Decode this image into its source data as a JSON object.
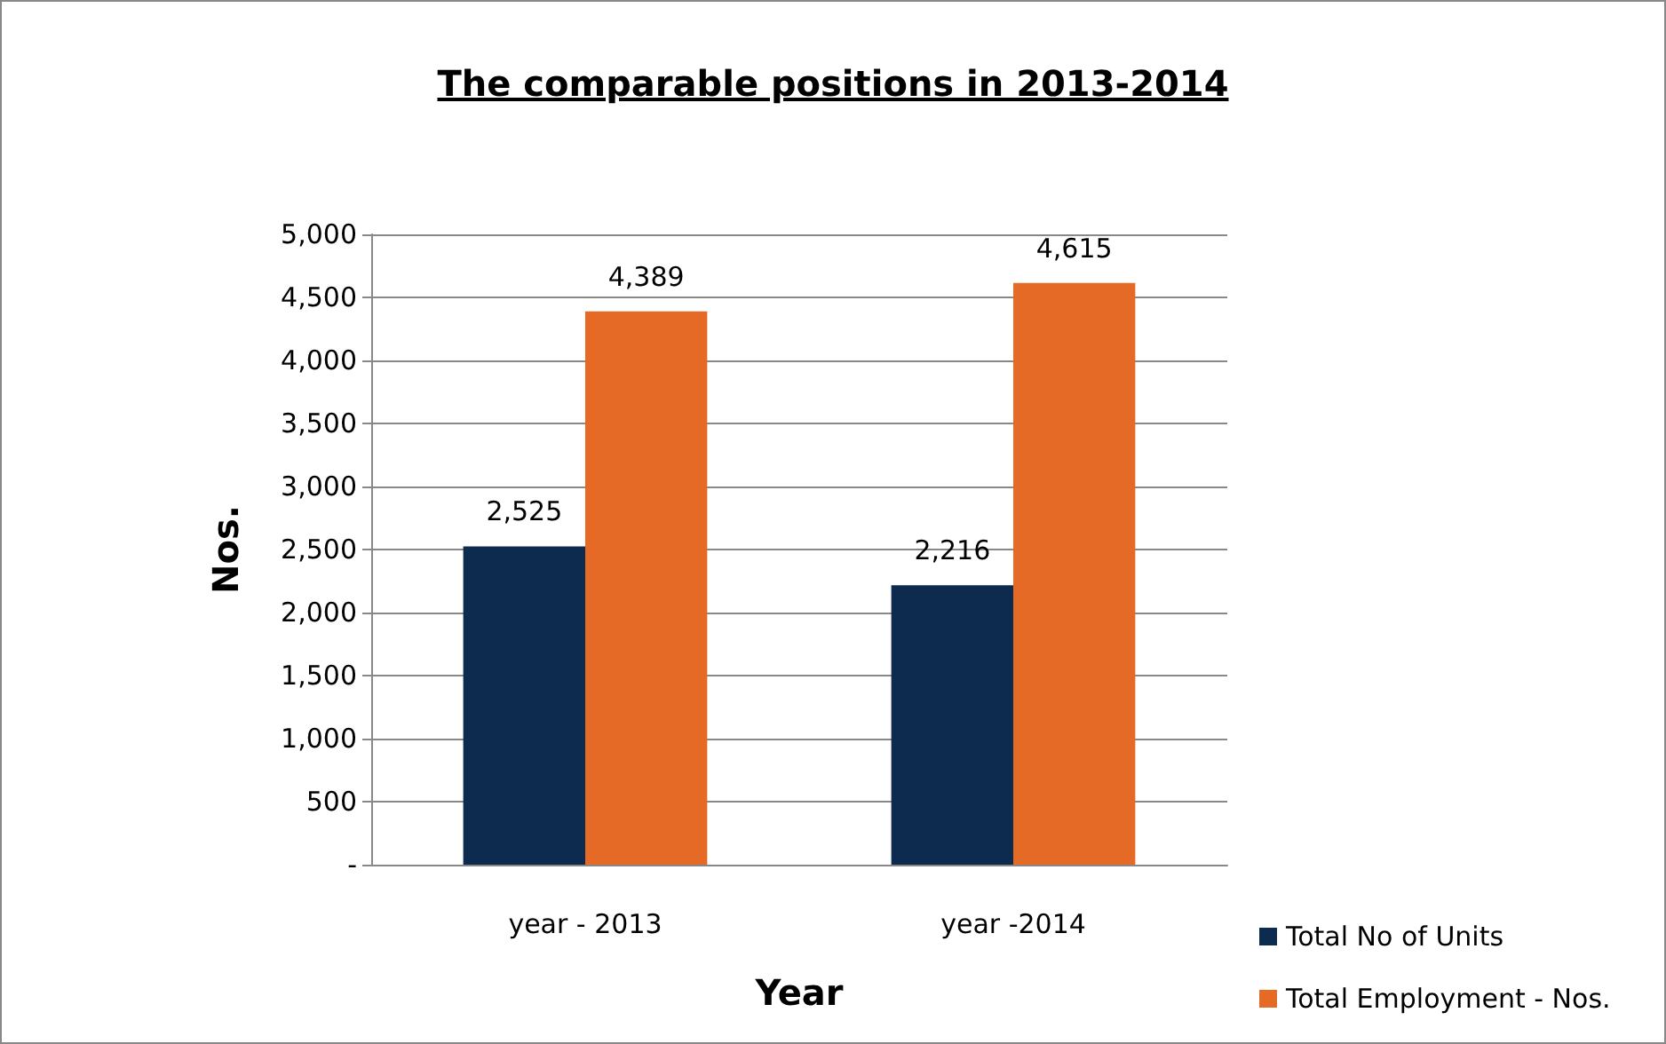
{
  "chart_data": {
    "type": "bar",
    "title": "The comparable positions in 2013-2014",
    "xlabel": "Year",
    "ylabel": "Nos.",
    "categories": [
      "year - 2013",
      "year -2014"
    ],
    "series": [
      {
        "name": "Total No of Units",
        "color": "#0d2a4f",
        "values": [
          2525,
          2216
        ],
        "value_labels": [
          "2,525",
          "2,216"
        ]
      },
      {
        "name": "Total Employment - Nos.",
        "color": "#e46a25",
        "values": [
          4389,
          4615
        ],
        "value_labels": [
          "4,389",
          "4,615"
        ]
      }
    ],
    "ylim": [
      0,
      5000
    ],
    "yticks": [
      {
        "value": 0,
        "label": "-"
      },
      {
        "value": 500,
        "label": "500"
      },
      {
        "value": 1000,
        "label": "1,000"
      },
      {
        "value": 1500,
        "label": "1,500"
      },
      {
        "value": 2000,
        "label": "2,000"
      },
      {
        "value": 2500,
        "label": "2,500"
      },
      {
        "value": 3000,
        "label": "3,000"
      },
      {
        "value": 3500,
        "label": "3,500"
      },
      {
        "value": 4000,
        "label": "4,000"
      },
      {
        "value": 4500,
        "label": "4,500"
      },
      {
        "value": 5000,
        "label": "5,000"
      }
    ],
    "grid": "y",
    "legend": "bottom right"
  }
}
